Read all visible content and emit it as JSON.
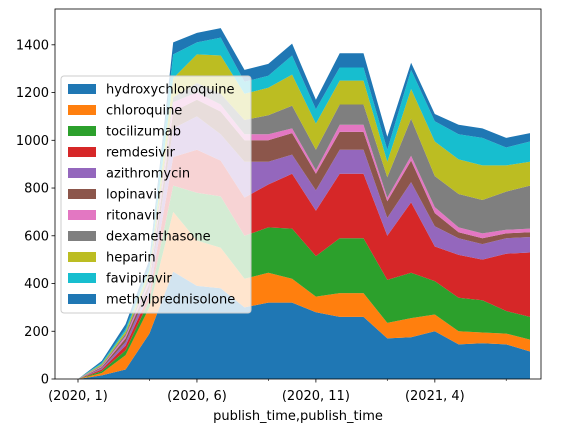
{
  "chart_data": {
    "type": "area",
    "stacked": true,
    "xlabel": "publish_time,publish_time",
    "ylabel": "",
    "title": "",
    "ylim": [
      0,
      1550
    ],
    "yticks": [
      0,
      200,
      400,
      600,
      800,
      1000,
      1200,
      1400
    ],
    "x": [
      "(2020, 1)",
      "(2020, 2)",
      "(2020, 3)",
      "(2020, 4)",
      "(2020, 5)",
      "(2020, 6)",
      "(2020, 7)",
      "(2020, 8)",
      "(2020, 9)",
      "(2020, 10)",
      "(2020, 11)",
      "(2020, 12)",
      "(2021, 1)",
      "(2021, 2)",
      "(2021, 3)",
      "(2021, 4)",
      "(2021, 5)",
      "(2021, 6)",
      "(2021, 7)",
      "(2021, 8)"
    ],
    "xtick_labels": [
      {
        "index": 0,
        "label": "(2020, 1)"
      },
      {
        "index": 5,
        "label": "(2020, 6)"
      },
      {
        "index": 10,
        "label": "(2020, 11)"
      },
      {
        "index": 15,
        "label": "(2021, 4)"
      }
    ],
    "minor_tick_indices": [
      3,
      8,
      13,
      18
    ],
    "legend_position": "center-left",
    "series": [
      {
        "name": "hydroxychloroquine",
        "color": "#1f77b4",
        "values": [
          0,
          15,
          40,
          190,
          450,
          390,
          380,
          300,
          320,
          320,
          280,
          260,
          260,
          170,
          175,
          200,
          145,
          150,
          145,
          115
        ]
      },
      {
        "name": "chloroquine",
        "color": "#ff7f0e",
        "values": [
          0,
          10,
          60,
          110,
          250,
          190,
          170,
          120,
          125,
          100,
          65,
          100,
          100,
          65,
          80,
          70,
          55,
          45,
          45,
          50
        ]
      },
      {
        "name": "tocilizumab",
        "color": "#2ca02c",
        "values": [
          0,
          8,
          20,
          30,
          110,
          200,
          215,
          180,
          190,
          210,
          170,
          230,
          230,
          180,
          190,
          140,
          140,
          135,
          95,
          95
        ]
      },
      {
        "name": "remdesivir",
        "color": "#d62728",
        "values": [
          0,
          7,
          20,
          25,
          120,
          180,
          150,
          160,
          180,
          230,
          190,
          270,
          270,
          185,
          295,
          145,
          180,
          170,
          240,
          270
        ]
      },
      {
        "name": "azithromycin",
        "color": "#9467bd",
        "values": [
          0,
          5,
          15,
          25,
          120,
          140,
          110,
          150,
          95,
          80,
          85,
          100,
          100,
          75,
          85,
          85,
          70,
          65,
          65,
          65
        ]
      },
      {
        "name": "lopinavir",
        "color": "#8c564b",
        "values": [
          0,
          5,
          15,
          20,
          70,
          70,
          95,
          90,
          90,
          90,
          70,
          75,
          75,
          70,
          90,
          55,
          25,
          25,
          20,
          20
        ]
      },
      {
        "name": "ritonavir",
        "color": "#e377c2",
        "values": [
          0,
          3,
          10,
          15,
          40,
          30,
          30,
          25,
          25,
          20,
          15,
          30,
          30,
          15,
          20,
          25,
          20,
          20,
          15,
          15
        ]
      },
      {
        "name": "dexamethasone",
        "color": "#7f7f7f",
        "values": [
          0,
          5,
          10,
          20,
          20,
          40,
          45,
          60,
          80,
          95,
          85,
          85,
          85,
          85,
          155,
          130,
          140,
          140,
          160,
          180
        ]
      },
      {
        "name": "heparin",
        "color": "#bcbd22",
        "values": [
          0,
          5,
          10,
          20,
          80,
          120,
          160,
          110,
          115,
          130,
          110,
          100,
          100,
          65,
          125,
          145,
          145,
          145,
          110,
          100
        ]
      },
      {
        "name": "favipiravir",
        "color": "#17becf",
        "values": [
          0,
          5,
          10,
          20,
          100,
          50,
          75,
          50,
          50,
          80,
          60,
          55,
          55,
          50,
          80,
          85,
          105,
          115,
          75,
          85
        ]
      },
      {
        "name": "methylprednisolone",
        "color": "#1f77b4",
        "values": [
          0,
          8,
          20,
          25,
          50,
          40,
          40,
          50,
          50,
          50,
          40,
          60,
          60,
          55,
          30,
          30,
          40,
          40,
          40,
          35
        ]
      }
    ]
  }
}
